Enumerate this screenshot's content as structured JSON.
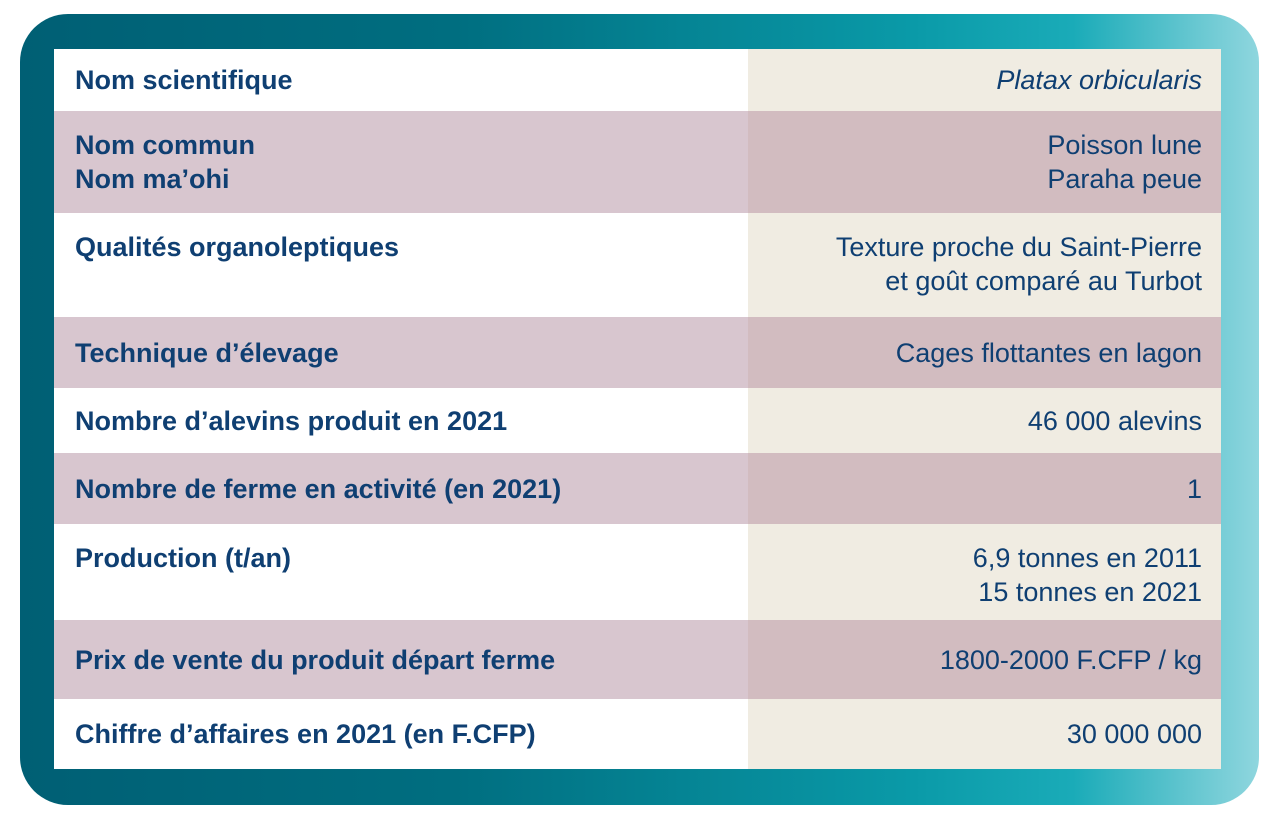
{
  "colors": {
    "label_text": "#0f3f72",
    "frame_dark": "#005f74",
    "frame_light": "#8fd6de",
    "row_light_left": "#ffffff",
    "row_light_right": "#f0ece2",
    "row_dark_left": "#d8c6cf",
    "row_dark_right": "#d2bcc0"
  },
  "rows": [
    {
      "label": [
        "Nom scientifique"
      ],
      "value": [
        "Platax orbicularis"
      ]
    },
    {
      "label": [
        "Nom commun",
        "Nom ma’ohi"
      ],
      "value": [
        "Poisson lune",
        "Paraha peue"
      ]
    },
    {
      "label": [
        "Qualités organoleptiques"
      ],
      "value": [
        "Texture proche du Saint-Pierre",
        "et goût comparé au Turbot"
      ]
    },
    {
      "label": [
        "Technique d’élevage"
      ],
      "value": [
        "Cages flottantes en lagon"
      ]
    },
    {
      "label": [
        "Nombre d’alevins produit en 2021"
      ],
      "value": [
        "46 000 alevins"
      ]
    },
    {
      "label": [
        "Nombre de ferme en activité (en 2021)"
      ],
      "value": [
        "1"
      ]
    },
    {
      "label": [
        "Production (t/an)"
      ],
      "value": [
        "6,9 tonnes en 2011",
        "15 tonnes en 2021"
      ]
    },
    {
      "label": [
        "Prix de vente du produit départ ferme"
      ],
      "value": [
        "1800-2000 F.CFP / kg"
      ]
    },
    {
      "label": [
        "Chiffre d’affaires en 2021 (en F.CFP)"
      ],
      "value": [
        "30 000 000"
      ]
    }
  ]
}
